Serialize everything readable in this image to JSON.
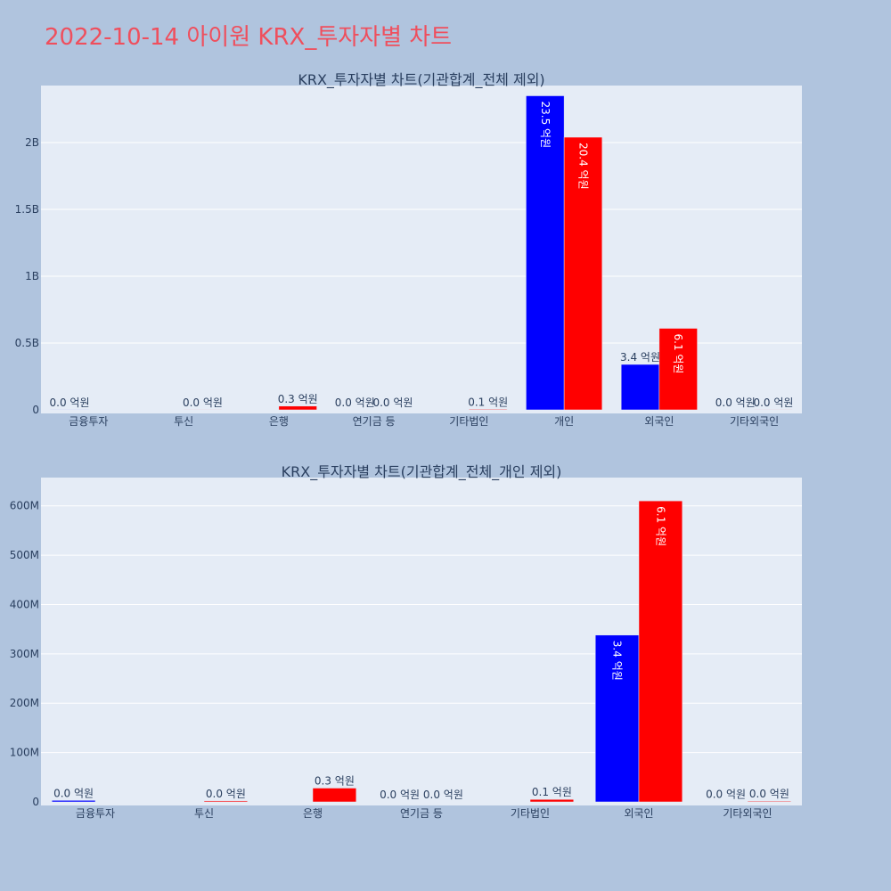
{
  "page_title": "2022-10-14 아이원 KRX_투자자별 차트",
  "colors": {
    "background": "#b0c4de",
    "plot_bg": "#e5ecf6",
    "grid": "#ffffff",
    "title": "#ef4f5d",
    "text": "#2a3f5f",
    "buy": "#0000ff",
    "sell": "#ff0000"
  },
  "chart_data": [
    {
      "type": "bar",
      "title": "KRX_투자자별 차트(기관합계_전체 제외)",
      "categories": [
        "금융투자",
        "투신",
        "은행",
        "연기금 등",
        "기타법인",
        "개인",
        "외국인",
        "기타외국인"
      ],
      "ylim": [
        0,
        2400000000
      ],
      "yticks": [
        0,
        500000000,
        1000000000,
        1500000000,
        2000000000
      ],
      "ytick_labels": [
        "0",
        "0.5B",
        "1B",
        "1.5B",
        "2B"
      ],
      "grid": true,
      "series": [
        {
          "color": "#0000ff",
          "values": [
            1000000,
            0,
            0,
            0,
            0,
            2350000000,
            340000000,
            0
          ],
          "labels": [
            "0.0 억원",
            "",
            "",
            "0.0 억원",
            "",
            "23.5 억원",
            "3.4 억원",
            "0.0 억원"
          ]
        },
        {
          "color": "#ff0000",
          "values": [
            0,
            1000000,
            28000000,
            0,
            5000000,
            2040000000,
            610000000,
            1000000
          ],
          "labels": [
            "",
            "0.0 억원",
            "0.3 억원",
            "0.0 억원",
            "0.1 억원",
            "20.4 억원",
            "6.1 억원",
            "0.0 억원"
          ]
        }
      ]
    },
    {
      "type": "bar",
      "title": "KRX_투자자별 차트(기관합계_전체_개인 제외)",
      "categories": [
        "금융투자",
        "투신",
        "은행",
        "연기금 등",
        "기타법인",
        "외국인",
        "기타외국인"
      ],
      "ylim": [
        0,
        650000000
      ],
      "yticks": [
        0,
        100000000,
        200000000,
        300000000,
        400000000,
        500000000,
        600000000
      ],
      "ytick_labels": [
        "0",
        "100M",
        "200M",
        "300M",
        "400M",
        "500M",
        "600M"
      ],
      "grid": true,
      "series": [
        {
          "color": "#0000ff",
          "values": [
            3000000,
            0,
            0,
            0,
            0,
            338000000,
            500000
          ],
          "labels": [
            "0.0 억원",
            "",
            "",
            "0.0 억원",
            "",
            "3.4 억원",
            "0.0 억원"
          ]
        },
        {
          "color": "#ff0000",
          "values": [
            0,
            2000000,
            28000000,
            0,
            5000000,
            610000000,
            1500000
          ],
          "labels": [
            "",
            "0.0 억원",
            "0.3 억원",
            "0.0 억원",
            "0.1 억원",
            "6.1 억원",
            "0.0 억원"
          ]
        }
      ]
    }
  ]
}
